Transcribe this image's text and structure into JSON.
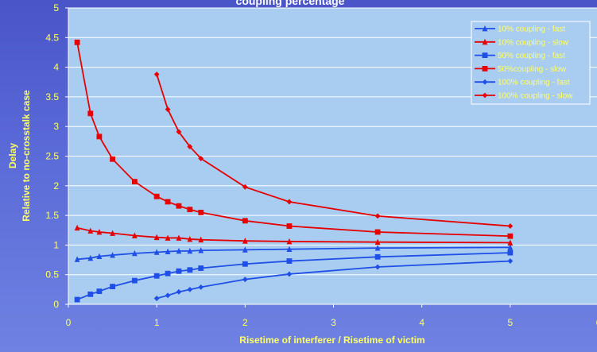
{
  "colors": {
    "plot_bg": "#a9cdf0",
    "axis": "#ffffff",
    "tick_text": "#ffff66",
    "blue_series": "#1f4fe6",
    "red_series": "#e60000"
  },
  "chart_data": {
    "type": "line",
    "title": "coupling percentage",
    "xlabel": "Risetime of interferer / Risetime of victim",
    "ylabel_line1": "Delay",
    "ylabel_line2": "Relative to no-crosstalk case",
    "xlim": [
      0,
      6
    ],
    "ylim": [
      0,
      5
    ],
    "x_ticks": [
      0,
      1,
      2,
      3,
      4,
      5,
      6
    ],
    "y_ticks": [
      0,
      0.5,
      1,
      1.5,
      2,
      2.5,
      3,
      3.5,
      4,
      4.5,
      5
    ],
    "grid": {
      "x": false,
      "y": true
    },
    "legend_position": "top-right",
    "series": [
      {
        "name": "10% coupling - fast",
        "color": "#1f4fe6",
        "marker": "triangle",
        "x": [
          0.1,
          0.25,
          0.35,
          0.5,
          0.75,
          1.0,
          1.125,
          1.25,
          1.375,
          1.5,
          2.0,
          2.5,
          3.5,
          5.0
        ],
        "y": [
          0.76,
          0.78,
          0.81,
          0.83,
          0.86,
          0.88,
          0.89,
          0.9,
          0.9,
          0.91,
          0.92,
          0.93,
          0.95,
          0.96
        ]
      },
      {
        "name": "10% coupling - slow",
        "color": "#e60000",
        "marker": "triangle",
        "x": [
          0.1,
          0.25,
          0.35,
          0.5,
          0.75,
          1.0,
          1.125,
          1.25,
          1.375,
          1.5,
          2.0,
          2.5,
          3.5,
          5.0
        ],
        "y": [
          1.29,
          1.24,
          1.22,
          1.2,
          1.16,
          1.13,
          1.12,
          1.12,
          1.1,
          1.09,
          1.07,
          1.06,
          1.05,
          1.04
        ]
      },
      {
        "name": "50% coupling - fast",
        "color": "#1f4fe6",
        "marker": "square",
        "x": [
          0.1,
          0.25,
          0.35,
          0.5,
          0.75,
          1.0,
          1.125,
          1.25,
          1.375,
          1.5,
          2.0,
          2.5,
          3.5,
          5.0
        ],
        "y": [
          0.08,
          0.17,
          0.22,
          0.3,
          0.4,
          0.48,
          0.52,
          0.56,
          0.58,
          0.61,
          0.68,
          0.73,
          0.8,
          0.87
        ]
      },
      {
        "name": "50%coupling - slow",
        "color": "#e60000",
        "marker": "square",
        "x": [
          0.1,
          0.25,
          0.35,
          0.5,
          0.75,
          1.0,
          1.125,
          1.25,
          1.375,
          1.5,
          2.0,
          2.5,
          3.5,
          5.0
        ],
        "y": [
          4.42,
          3.22,
          2.83,
          2.45,
          2.07,
          1.82,
          1.73,
          1.66,
          1.6,
          1.55,
          1.41,
          1.32,
          1.22,
          1.15
        ]
      },
      {
        "name": "100% coupling - fast",
        "color": "#1f4fe6",
        "marker": "diamond",
        "x": [
          1.0,
          1.125,
          1.25,
          1.375,
          1.5,
          2.0,
          2.5,
          3.5,
          5.0
        ],
        "y": [
          0.1,
          0.15,
          0.21,
          0.25,
          0.29,
          0.42,
          0.51,
          0.63,
          0.73
        ]
      },
      {
        "name": "100% coupling - slow",
        "color": "#e60000",
        "marker": "diamond",
        "x": [
          1.0,
          1.125,
          1.25,
          1.375,
          1.5,
          2.0,
          2.5,
          3.5,
          5.0
        ],
        "y": [
          3.88,
          3.29,
          2.91,
          2.66,
          2.46,
          1.98,
          1.73,
          1.49,
          1.32
        ]
      }
    ]
  }
}
